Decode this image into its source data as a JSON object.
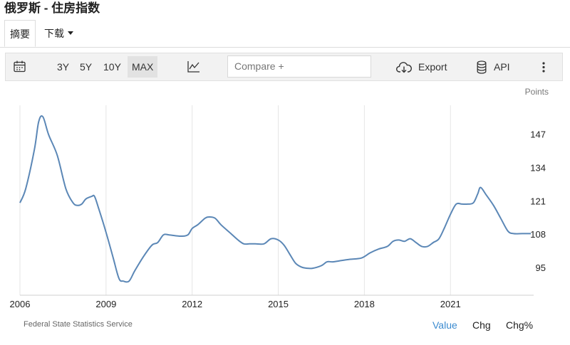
{
  "page": {
    "title": "俄罗斯 - 住房指数"
  },
  "tabs": {
    "summary": "摘要",
    "download": "下载"
  },
  "toolbar": {
    "ranges": [
      "3Y",
      "5Y",
      "10Y",
      "MAX"
    ],
    "active_range": "MAX",
    "compare_placeholder": "Compare +",
    "export_label": "Export",
    "api_label": "API",
    "icons": [
      "calendar-icon",
      "line-chart-icon",
      "cloud-download-icon",
      "database-icon",
      "more-vertical-icon"
    ]
  },
  "footer": {
    "source": "Federal State Statistics Service",
    "links": [
      "Value",
      "Chg",
      "Chg%"
    ],
    "active_link": "Value"
  },
  "colors": {
    "line": "#5b87b6",
    "accent": "#3b8bd0",
    "grid": "#e6e6e6"
  },
  "chart_data": {
    "type": "line",
    "unit_label": "Points",
    "xlim": [
      2006,
      2023.8
    ],
    "ylim": [
      84.5,
      158.5
    ],
    "x_ticks": [
      2006,
      2009,
      2012,
      2015,
      2018,
      2021
    ],
    "y_ticks": [
      95,
      108,
      121,
      134,
      147
    ],
    "grid": "vertical",
    "series": [
      {
        "x": [
          2006.0,
          2006.2,
          2006.5,
          2006.65,
          2006.8,
          2007.0,
          2007.3,
          2007.6,
          2007.85,
          2008.0,
          2008.15,
          2008.3,
          2008.5,
          2008.6,
          2008.75,
          2009.0,
          2009.25,
          2009.45,
          2009.6,
          2009.8,
          2010.0,
          2010.3,
          2010.6,
          2010.8,
          2011.0,
          2011.2,
          2011.6,
          2011.85,
          2012.0,
          2012.2,
          2012.45,
          2012.6,
          2012.8,
          2013.0,
          2013.3,
          2013.6,
          2013.8,
          2014.0,
          2014.2,
          2014.5,
          2014.75,
          2015.0,
          2015.2,
          2015.4,
          2015.6,
          2015.8,
          2016.0,
          2016.2,
          2016.5,
          2016.7,
          2016.9,
          2017.2,
          2017.5,
          2017.9,
          2018.2,
          2018.5,
          2018.8,
          2019.0,
          2019.2,
          2019.4,
          2019.6,
          2019.8,
          2020.0,
          2020.2,
          2020.4,
          2020.6,
          2020.8,
          2021.0,
          2021.2,
          2021.4,
          2021.6,
          2021.8,
          2021.95,
          2022.05,
          2022.25,
          2022.5,
          2022.75,
          2023.0,
          2023.2,
          2023.5,
          2023.8
        ],
        "y": [
          120.5,
          126,
          141,
          152,
          154,
          147,
          139,
          126,
          120.5,
          119.5,
          120,
          122,
          123,
          123,
          118,
          109,
          99,
          91,
          90,
          90,
          94,
          99.5,
          104,
          105,
          108,
          108,
          107.5,
          108,
          110.5,
          112,
          114.5,
          115,
          114.5,
          112,
          109,
          106,
          104.5,
          104.5,
          104.5,
          104.5,
          106.5,
          106,
          104,
          100.5,
          97,
          95.5,
          95,
          95,
          96,
          97.5,
          97.5,
          98,
          98.5,
          99,
          101,
          102.5,
          103.5,
          105.5,
          106,
          105.5,
          106.5,
          105,
          103.5,
          103.5,
          105,
          106.5,
          111,
          116,
          120,
          120,
          120,
          120.5,
          124,
          126.5,
          123.5,
          119.5,
          114.5,
          109.5,
          108.5,
          108.5,
          108.5
        ]
      }
    ]
  }
}
